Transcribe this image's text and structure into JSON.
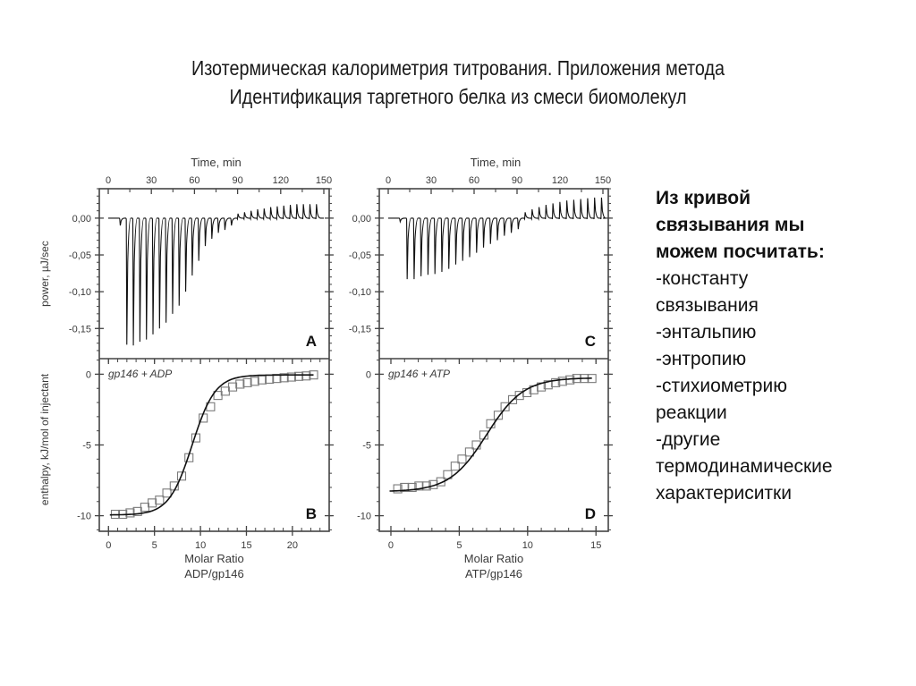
{
  "slide": {
    "title_line1": "Изотермическая калориметрия титрования. Приложения метода",
    "title_line2": "Идентификация таргетного белка из смеси биомолекул",
    "side_text": {
      "heading": [
        "Из кривой",
        "связывания мы",
        "можем посчитать:"
      ],
      "items": [
        "-константу",
        "связывания",
        "-энтальпию",
        "-энтропию",
        "-стихиометрию",
        "реакции",
        "-другие",
        "термодинамические",
        "характериситки"
      ]
    }
  },
  "chart_data": [
    {
      "panel": "A",
      "type": "line",
      "title": "",
      "xlabel": "Time, min",
      "ylabel": "power, µJ/sec",
      "x_ticks": [
        "0",
        "30",
        "60",
        "90",
        "120",
        "150"
      ],
      "y_ticks": [
        "0,00",
        "-0,05",
        "-0,10",
        "-0,15"
      ],
      "xlim": [
        0,
        150
      ],
      "ylim": [
        -0.191,
        0.04
      ],
      "injection_times_start": 8,
      "injection_interval_min": 4.55,
      "peak_values": [
        -0.01,
        -0.172,
        -0.173,
        -0.168,
        -0.165,
        -0.158,
        -0.15,
        -0.142,
        -0.13,
        -0.119,
        -0.1,
        -0.078,
        -0.058,
        -0.038,
        -0.028,
        -0.02,
        -0.016,
        -0.01,
        0.006,
        0.008,
        0.01,
        0.012,
        0.013,
        0.015,
        0.016,
        0.017,
        0.018,
        0.019,
        0.019,
        0.019,
        0.019
      ],
      "annotation": "A"
    },
    {
      "panel": "B",
      "type": "scatter",
      "xlabel": "Molar Ratio\nADP/gp146",
      "xlabel_line1": "Molar Ratio",
      "xlabel_line2": "ADP/gp146",
      "ylabel": "enthalpy, kJ/mol of injectant",
      "x_ticks": [
        "0",
        "5",
        "10",
        "15",
        "20"
      ],
      "y_ticks": [
        "0",
        "-5",
        "-10"
      ],
      "xlim": [
        -1,
        24
      ],
      "ylim": [
        -11.1,
        1.1
      ],
      "legend": "gp146 + ADP",
      "annotation": "B",
      "x": [
        0.75,
        1.55,
        2.35,
        3.15,
        3.95,
        4.75,
        5.55,
        6.35,
        7.15,
        7.95,
        8.75,
        9.5,
        10.3,
        11.1,
        11.9,
        12.7,
        13.5,
        14.3,
        15.1,
        15.9,
        16.7,
        17.5,
        18.3,
        19.1,
        19.9,
        20.7,
        21.5,
        22.3
      ],
      "values": [
        -9.9,
        -9.9,
        -9.8,
        -9.7,
        -9.4,
        -9.1,
        -8.9,
        -8.4,
        -7.9,
        -7.2,
        -5.9,
        -4.5,
        -3.1,
        -2.3,
        -1.5,
        -1.2,
        -0.9,
        -0.7,
        -0.6,
        -0.5,
        -0.4,
        -0.35,
        -0.3,
        -0.25,
        -0.2,
        -0.15,
        -0.12,
        -0.05
      ],
      "fit": {
        "type": "sigmoid",
        "bottom": -9.95,
        "top": -0.05,
        "x0": 9.1,
        "width": 1.25
      }
    },
    {
      "panel": "C",
      "type": "line",
      "xlabel": "Time, min",
      "ylabel": "",
      "x_ticks": [
        "0",
        "30",
        "60",
        "90",
        "120",
        "150"
      ],
      "y_ticks": [
        "0,00",
        "-0,05",
        "-0,10",
        "-0,15"
      ],
      "xlim": [
        0,
        150
      ],
      "ylim": [
        -0.191,
        0.04
      ],
      "injection_times_start": 8,
      "injection_interval_min": 4.85,
      "peak_values": [
        -0.005,
        -0.083,
        -0.083,
        -0.079,
        -0.077,
        -0.076,
        -0.073,
        -0.069,
        -0.063,
        -0.058,
        -0.053,
        -0.047,
        -0.04,
        -0.035,
        -0.03,
        -0.024,
        -0.02,
        -0.015,
        0.008,
        0.012,
        0.015,
        0.018,
        0.02,
        0.022,
        0.024,
        0.025,
        0.026,
        0.027,
        0.028,
        0.028
      ],
      "annotation": "C"
    },
    {
      "panel": "D",
      "type": "scatter",
      "xlabel": "Molar Ratio\nATP/gp146",
      "xlabel_line1": "Molar Ratio",
      "xlabel_line2": "ATP/gp146",
      "ylabel": "",
      "x_ticks": [
        "0",
        "5",
        "10",
        "15"
      ],
      "y_ticks": [
        "0",
        "-5",
        "-10"
      ],
      "xlim": [
        -0.85,
        15.9
      ],
      "ylim": [
        -11.1,
        1.1
      ],
      "legend": "gp146 + ATP",
      "annotation": "D",
      "x": [
        0.5,
        1.0,
        1.55,
        2.05,
        2.6,
        3.1,
        3.65,
        4.15,
        4.7,
        5.2,
        5.75,
        6.25,
        6.8,
        7.3,
        7.85,
        8.35,
        8.9,
        9.4,
        9.95,
        10.45,
        11.0,
        11.5,
        12.05,
        12.55,
        13.1,
        13.6,
        14.15,
        14.7
      ],
      "values": [
        -8.1,
        -8.0,
        -8.0,
        -7.9,
        -7.9,
        -7.8,
        -7.6,
        -7.1,
        -6.5,
        -6.0,
        -5.5,
        -5.0,
        -4.3,
        -3.5,
        -2.9,
        -2.3,
        -1.8,
        -1.5,
        -1.3,
        -1.1,
        -0.9,
        -0.75,
        -0.6,
        -0.5,
        -0.4,
        -0.3,
        -0.3,
        -0.3
      ],
      "fit": {
        "type": "sigmoid",
        "bottom": -8.3,
        "top": -0.25,
        "x0": 7.0,
        "width": 1.35
      }
    }
  ]
}
